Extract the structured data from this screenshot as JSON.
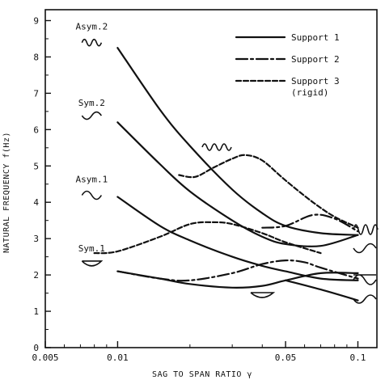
{
  "chart_data": {
    "type": "line",
    "title": "",
    "xlabel": "SAG TO SPAN RATIO γ",
    "ylabel": "NATURAL FREQUENCY f(Hz)",
    "xscale": "log",
    "xlim": [
      0.005,
      0.12
    ],
    "ylim": [
      0,
      9.3
    ],
    "xticks": [
      {
        "value": 0.005,
        "label": "0.005"
      },
      {
        "value": 0.01,
        "label": "0.01"
      },
      {
        "value": 0.05,
        "label": "0.05"
      },
      {
        "value": 0.1,
        "label": "0.1"
      }
    ],
    "yticks": [
      0,
      1,
      2,
      3,
      4,
      5,
      6,
      7,
      8,
      9
    ],
    "legend": {
      "position": "top-right",
      "entries": [
        {
          "label": "Support 1",
          "style": "solid"
        },
        {
          "label": "Support 2",
          "style": "dash-dot"
        },
        {
          "label": "Support 3",
          "sublabel": "(rigid)",
          "style": "dashed"
        }
      ]
    },
    "mode_labels": [
      {
        "text": "Asym.2",
        "x": 0.0078,
        "y": 8.75
      },
      {
        "text": "Sym.2",
        "x": 0.0078,
        "y": 6.65
      },
      {
        "text": "Asym.1",
        "x": 0.0078,
        "y": 4.55
      },
      {
        "text": "Sym.1",
        "x": 0.0078,
        "y": 2.65
      }
    ],
    "series": [
      {
        "style": "solid",
        "x": [
          0.01,
          0.015,
          0.02,
          0.03,
          0.04,
          0.05,
          0.07,
          0.1
        ],
        "y": [
          8.25,
          6.55,
          5.55,
          4.35,
          3.7,
          3.35,
          3.15,
          3.1
        ]
      },
      {
        "style": "solid",
        "x": [
          0.01,
          0.015,
          0.02,
          0.03,
          0.04,
          0.05,
          0.07,
          0.1
        ],
        "y": [
          6.2,
          5.05,
          4.3,
          3.5,
          3.05,
          2.85,
          2.8,
          3.1
        ]
      },
      {
        "style": "solid",
        "x": [
          0.01,
          0.015,
          0.02,
          0.03,
          0.04,
          0.05,
          0.07,
          0.1
        ],
        "y": [
          4.15,
          3.35,
          2.95,
          2.5,
          2.25,
          2.1,
          1.9,
          1.85
        ]
      },
      {
        "style": "solid",
        "x": [
          0.01,
          0.015,
          0.02,
          0.03,
          0.04,
          0.05,
          0.07,
          0.1
        ],
        "y": [
          2.1,
          1.9,
          1.75,
          1.65,
          1.7,
          1.85,
          2.05,
          2.05
        ]
      },
      {
        "style": "solid",
        "x": [
          0.05,
          0.07,
          0.1
        ],
        "y": [
          1.85,
          1.6,
          1.3
        ]
      },
      {
        "style": "dash-dot",
        "x": [
          0.04,
          0.05,
          0.065,
          0.08,
          0.1
        ],
        "y": [
          3.3,
          3.35,
          3.65,
          3.55,
          3.2
        ]
      },
      {
        "style": "dash-dot",
        "x": [
          0.01,
          0.015,
          0.02,
          0.03,
          0.04,
          0.05,
          0.06,
          0.07,
          0.1
        ],
        "y": [
          2.1,
          1.9,
          1.85,
          2.05,
          2.3,
          2.4,
          2.35,
          2.2,
          1.9
        ]
      },
      {
        "style": "dashed",
        "x": [
          0.018,
          0.021,
          0.025,
          0.03,
          0.034,
          0.04,
          0.05,
          0.065,
          0.08,
          0.1
        ],
        "y": [
          4.75,
          4.7,
          4.95,
          5.2,
          5.3,
          5.15,
          4.6,
          4.0,
          3.6,
          3.3
        ]
      },
      {
        "style": "dashed",
        "x": [
          0.008,
          0.01,
          0.015,
          0.02,
          0.025,
          0.03,
          0.04,
          0.05,
          0.07
        ],
        "y": [
          2.6,
          2.65,
          3.05,
          3.4,
          3.45,
          3.4,
          3.15,
          2.9,
          2.6
        ]
      }
    ]
  }
}
